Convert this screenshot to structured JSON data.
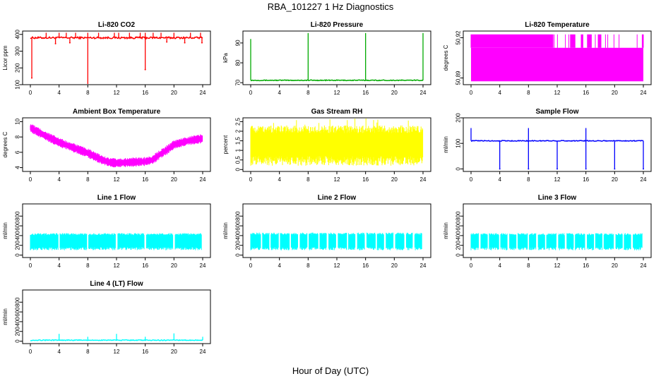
{
  "title": "RBA_101227  1 Hz Diagnostics",
  "xlabel": "Hour of Day (UTC)",
  "chart_data": [
    {
      "type": "line",
      "title": "Li-820 CO2",
      "ylabel": "Licor ppm",
      "color": "#ff0000",
      "xlim": [
        0,
        24
      ],
      "xticks": [
        0,
        4,
        8,
        12,
        16,
        20,
        24
      ],
      "ylim": [
        100,
        420
      ],
      "yticks": [
        100,
        200,
        300,
        400
      ],
      "series": [
        {
          "baseline": 380,
          "band": [
            370,
            392
          ],
          "spikes_up": [
            2.2,
            4.0,
            5.0,
            6.3,
            8.0,
            9.5,
            11.7,
            12.3,
            13.8,
            15.3,
            16.0,
            17.1,
            18.2,
            20.0,
            22.3,
            23.7
          ],
          "spike_up_value": 410,
          "spikes_down": [
            [
              0.2,
              140
            ],
            [
              8.0,
              100
            ],
            [
              16.0,
              190
            ],
            [
              23.9,
              350
            ],
            [
              3.5,
              345
            ],
            [
              5.5,
              350
            ],
            [
              19.0,
              355
            ],
            [
              21.5,
              350
            ]
          ]
        }
      ]
    },
    {
      "type": "line",
      "title": "Li-820 Pressure",
      "ylabel": "kPa",
      "color": "#00aa00",
      "xlim": [
        0,
        24
      ],
      "xticks": [
        0,
        4,
        8,
        12,
        16,
        20,
        24
      ],
      "ylim": [
        69,
        96
      ],
      "yticks": [
        70,
        80,
        90
      ],
      "series": [
        {
          "baseline": 71.2,
          "spikes_up": [
            [
              0.0,
              92
            ],
            [
              8.0,
              95
            ],
            [
              16.0,
              95
            ],
            [
              24.0,
              95
            ]
          ]
        }
      ]
    },
    {
      "type": "line",
      "title": "Li-820 Temperature",
      "ylabel": "degrees C",
      "color": "#ff00ff",
      "xlim": [
        0,
        24
      ],
      "xticks": [
        0,
        4,
        8,
        12,
        16,
        20,
        24
      ],
      "ylim": [
        50.885,
        50.925
      ],
      "yticks": [
        50.89,
        50.92
      ],
      "series": [
        {
          "levels": [
            50.8875,
            50.9125,
            50.9225
          ],
          "low_level": 50.8875,
          "gap_ranges": [
            [
              11.4,
              13.8
            ],
            [
              14.5,
              15.3
            ],
            [
              15.6,
              16.2
            ],
            [
              16.8,
              17.7
            ],
            [
              18.1,
              23.1
            ],
            [
              23.2,
              23.8
            ]
          ]
        }
      ]
    },
    {
      "type": "line",
      "title": "Ambient Box Temperature",
      "ylabel": "degrees C",
      "color": "#ff00ff",
      "xlim": [
        0,
        24
      ],
      "xticks": [
        0,
        4,
        8,
        12,
        16,
        20,
        24
      ],
      "ylim": [
        3.5,
        10.5
      ],
      "yticks": [
        4,
        6,
        8,
        10
      ],
      "series": [
        {
          "x": [
            0,
            2,
            4,
            6,
            8,
            10,
            11,
            12,
            14,
            16,
            17,
            18,
            19,
            20,
            22,
            24
          ],
          "y": [
            9.2,
            8.2,
            7.3,
            6.6,
            5.9,
            5.0,
            4.7,
            4.6,
            4.7,
            4.8,
            5.0,
            5.7,
            6.3,
            7.0,
            7.5,
            7.8
          ],
          "spread": 1.2
        }
      ]
    },
    {
      "type": "line",
      "title": "Gas Stream RH",
      "ylabel": "percent",
      "color": "#ffff00",
      "xlim": [
        0,
        24
      ],
      "xticks": [
        0,
        4,
        8,
        12,
        16,
        20,
        24
      ],
      "ylim": [
        -0.1,
        2.7
      ],
      "yticks": [
        0.0,
        0.5,
        1.0,
        1.5,
        2.0,
        2.5
      ],
      "series": [
        {
          "mean": 1.2,
          "band": [
            0.2,
            2.3
          ]
        }
      ]
    },
    {
      "type": "line",
      "title": "Sample Flow",
      "ylabel": "ml/min",
      "color": "#0000ff",
      "xlim": [
        0,
        24
      ],
      "xticks": [
        0,
        4,
        8,
        12,
        16,
        20,
        24
      ],
      "ylim": [
        -10,
        200
      ],
      "yticks": [
        0,
        100,
        200
      ],
      "series": [
        {
          "baseline": 110,
          "spikes_down": [
            4.0,
            8.0,
            12.0,
            16.0,
            20.0,
            24.0
          ],
          "spike_down_value": 0,
          "spikes_up": [
            0.0,
            8.0,
            16.0
          ],
          "spike_up_value": 160
        }
      ]
    },
    {
      "type": "line",
      "title": "Line 1 Flow",
      "ylabel": "ml/min",
      "color": "#00ffff",
      "xlim": [
        0,
        24
      ],
      "xticks": [
        0,
        4,
        8,
        12,
        16,
        20,
        24
      ],
      "ylim": [
        -50,
        1050
      ],
      "yticks": [
        0,
        200,
        400,
        600,
        800
      ],
      "series": [
        {
          "band": [
            100,
            450
          ],
          "gaps": [
            4.0,
            8.0,
            12.0,
            16.0,
            20.0,
            24.0
          ]
        }
      ]
    },
    {
      "type": "line",
      "title": "Line 2 Flow",
      "ylabel": "ml/min",
      "color": "#00ffff",
      "xlim": [
        0,
        24
      ],
      "xticks": [
        0,
        4,
        8,
        12,
        16,
        20,
        24
      ],
      "ylim": [
        -50,
        1050
      ],
      "yticks": [
        0,
        200,
        400,
        600,
        800
      ],
      "series": [
        {
          "band": [
            100,
            460
          ],
          "gaps": [
            1.5,
            2.7,
            4.0,
            5.5,
            6.7,
            8.0,
            9.5,
            10.7,
            12.0,
            13.5,
            14.7,
            16.0,
            17.5,
            18.7,
            20.0,
            21.5,
            22.7,
            24.0
          ]
        }
      ]
    },
    {
      "type": "line",
      "title": "Line 3 Flow",
      "ylabel": "ml/min",
      "color": "#00ffff",
      "xlim": [
        0,
        24
      ],
      "xticks": [
        0,
        4,
        8,
        12,
        16,
        20,
        24
      ],
      "ylim": [
        -50,
        1050
      ],
      "yticks": [
        0,
        200,
        400,
        600,
        800
      ],
      "series": [
        {
          "band": [
            100,
            450
          ],
          "gaps": [
            1.2,
            2.4,
            4.0,
            5.2,
            6.4,
            8.0,
            9.2,
            10.4,
            12.0,
            13.2,
            14.4,
            16.0,
            17.2,
            18.4,
            20.0,
            21.2,
            22.4,
            24.0
          ]
        }
      ]
    },
    {
      "type": "line",
      "title": "Line 4 (LT) Flow",
      "ylabel": "ml/min",
      "color": "#00ffff",
      "xlim": [
        0,
        24
      ],
      "xticks": [
        0,
        4,
        8,
        12,
        16,
        20,
        24
      ],
      "ylim": [
        -50,
        1050
      ],
      "yticks": [
        0,
        200,
        400,
        600,
        800
      ],
      "series": [
        {
          "baseline": 20,
          "spikes_up": [
            [
              4.0,
              150
            ],
            [
              8.0,
              90
            ],
            [
              12.0,
              150
            ],
            [
              16.0,
              90
            ],
            [
              20.0,
              160
            ],
            [
              24.0,
              90
            ]
          ]
        }
      ]
    }
  ]
}
